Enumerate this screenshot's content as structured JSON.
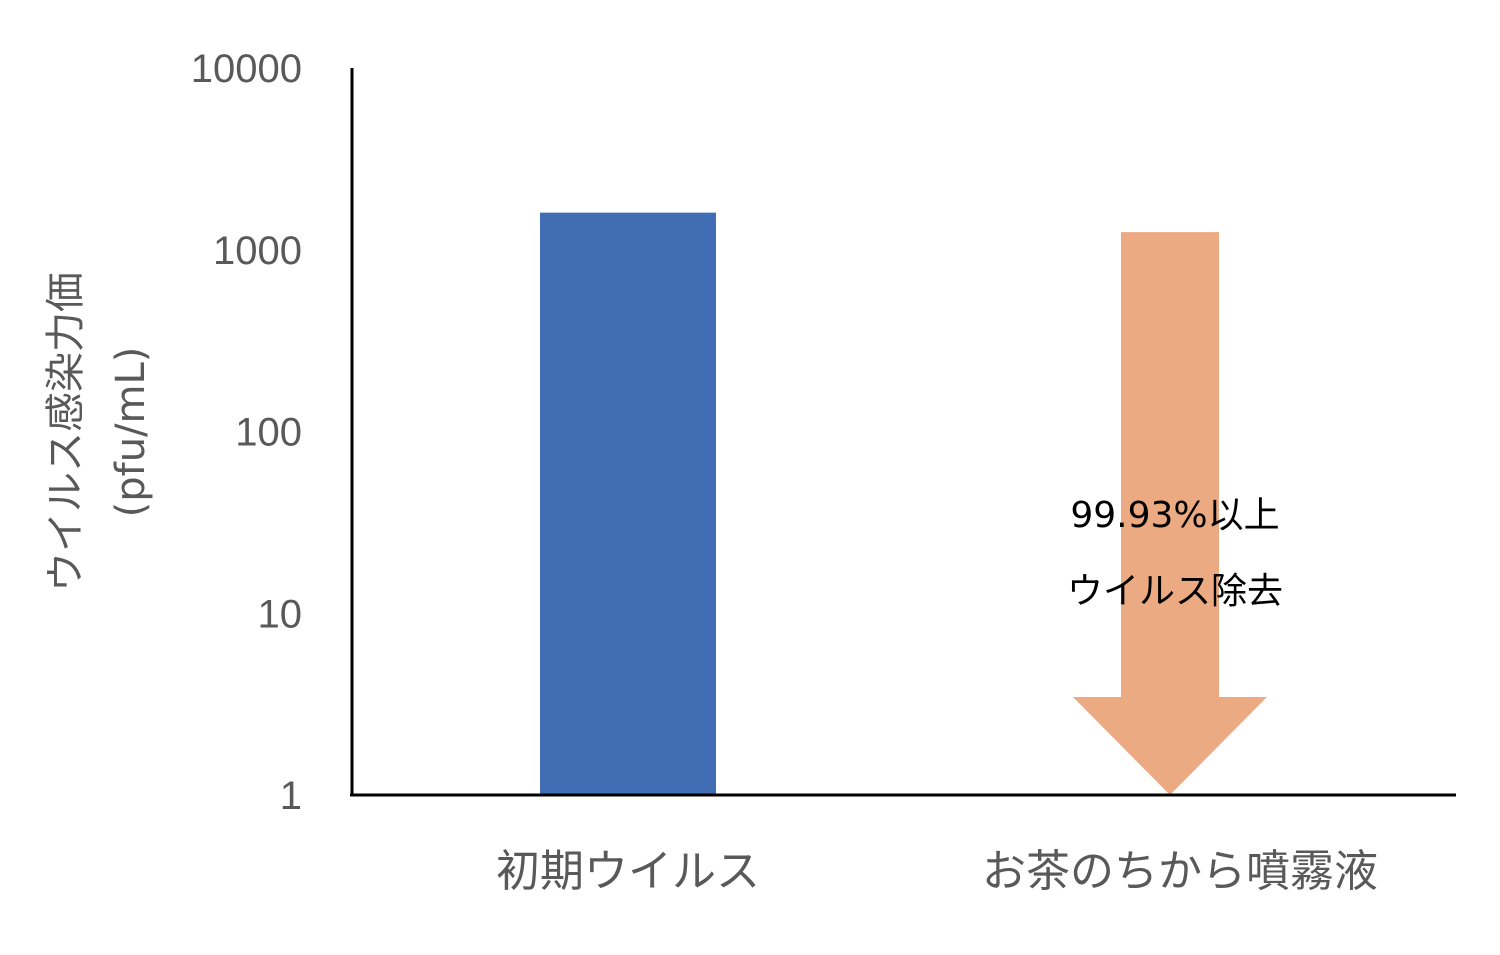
{
  "chart_data": {
    "type": "bar",
    "y_scale": "log",
    "ylim": [
      1,
      10000
    ],
    "y_ticks": [
      "1",
      "10",
      "100",
      "1000",
      "10000"
    ],
    "ylabel_line1": "ウイルス感染力価",
    "ylabel_line2": "(pfu/mL)",
    "categories": [
      "初期ウイルス",
      "お茶のちから噴霧液"
    ],
    "values": [
      1600,
      1
    ],
    "bar_color": "#416DB4",
    "arrow": {
      "color": "#EBAA82",
      "from_value": 1250,
      "to_value": 1,
      "label_line1": "99.93%以上",
      "label_line2": "ウイルス除去"
    },
    "grid": false,
    "legend": "none"
  }
}
